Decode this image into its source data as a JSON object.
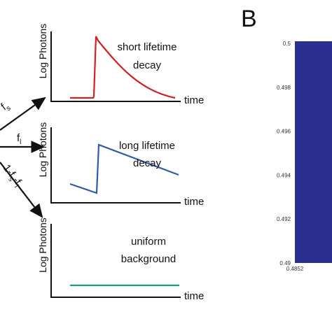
{
  "panel_a": {
    "branches": [
      {
        "parts": [
          "f",
          "s"
        ]
      },
      {
        "parts": [
          "f",
          "l"
        ]
      },
      {
        "parts": [
          "1-f",
          "s",
          "-f",
          "l"
        ]
      }
    ],
    "plots": [
      {
        "y_label": "Log Photons",
        "x_label": "time",
        "caption": [
          "short lifetime",
          "decay"
        ]
      },
      {
        "y_label": "Log Photons",
        "x_label": "time",
        "caption": [
          "long lifetime",
          "decay"
        ]
      },
      {
        "y_label": "Log Photons",
        "x_label": "time",
        "caption": [
          "uniform",
          "background"
        ]
      }
    ]
  },
  "panel_b": {
    "label": "B",
    "y_tick_labels": [
      "0.5",
      "0.498",
      "0.496",
      "0.494",
      "0.492",
      "0.49"
    ],
    "x_tick_label": "0.4852"
  }
}
